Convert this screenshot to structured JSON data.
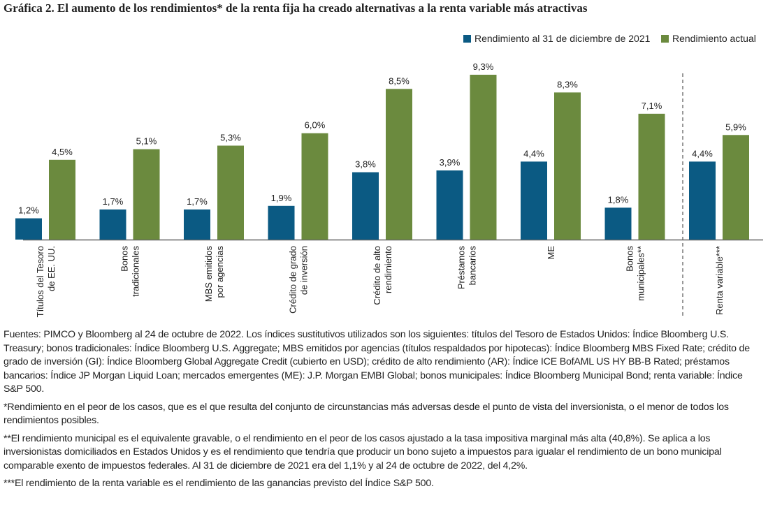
{
  "chart_data": {
    "type": "bar",
    "title": "Gráfica 2. El aumento de los rendimientos* de la renta fija ha creado alternativas a la renta variable más atractivas",
    "categories": [
      "Títulos del Tesoro\nde EE. UU.",
      "Bonos\ntradicionales",
      "MBS emitidos\npor agencias",
      "Crédito de grado\nde inversión",
      "Crédito de alto\nrendimiento",
      "Préstamos\nbancarios",
      "ME",
      "Bonos\nmunicipales**",
      "Renta variable***"
    ],
    "series": [
      {
        "name": "Rendimiento al 31 de diciembre de 2021",
        "color": "#0b5a83",
        "values": [
          1.2,
          1.7,
          1.7,
          1.9,
          3.8,
          3.9,
          4.4,
          1.8,
          4.4
        ],
        "value_labels": [
          "1,2%",
          "1,7%",
          "1,7%",
          "1,9%",
          "3,8%",
          "3,9%",
          "4,4%",
          "1,8%",
          "4,4%"
        ]
      },
      {
        "name": "Rendimiento actual",
        "color": "#6b8a3e",
        "values": [
          4.5,
          5.1,
          5.3,
          6.0,
          8.5,
          9.3,
          8.3,
          7.1,
          5.9
        ],
        "value_labels": [
          "4,5%",
          "5,1%",
          "5,3%",
          "6,0%",
          "8,5%",
          "9,3%",
          "8,3%",
          "7,1%",
          "5,9%"
        ]
      }
    ],
    "notes": [
      "Fuentes: PIMCO y Bloomberg al 24 de octubre de 2022. Los índices sustitutivos utilizados son los siguientes: títulos del Tesoro de Estados Unidos: Índice Bloomberg U.S. Treasury; bonos tradicionales: Índice Bloomberg U.S. Aggregate; MBS emitidos por agencias (títulos respaldados por hipotecas): Índice Bloomberg MBS Fixed Rate; crédito de grado de inversión (GI): Índice Bloomberg Global Aggregate Credit (cubierto en USD); crédito de alto rendimiento (AR): Índice ICE BofAML US HY BB-B Rated; préstamos bancarios: Índice JP Morgan Liquid Loan; mercados emergentes (ME): J.P. Morgan EMBI Global; bonos municipales: Índice Bloomberg Municipal Bond; renta variable: Índice S&P 500.",
      "*Rendimiento en el peor de los casos, que es el que resulta del conjunto de circunstancias más adversas desde el punto de vista del inversionista, o el menor de todos los rendimientos posibles.",
      "**El rendimiento municipal es el equivalente gravable, o el rendimiento en el peor de los casos ajustado a la tasa impositiva marginal más alta (40,8%). Se aplica a los inversionistas domiciliados en Estados Unidos y es el rendimiento que tendría que producir un bono sujeto a impuestos para igualar el rendimiento de un bono municipal comparable exento de impuestos federales. Al 31 de diciembre de 2021 era del 1,1% y al 24 de octubre de 2022, del 4,2%.",
      "***El rendimiento de la renta variable es el rendimiento de las ganancias previsto del Índice S&P 500."
    ]
  }
}
